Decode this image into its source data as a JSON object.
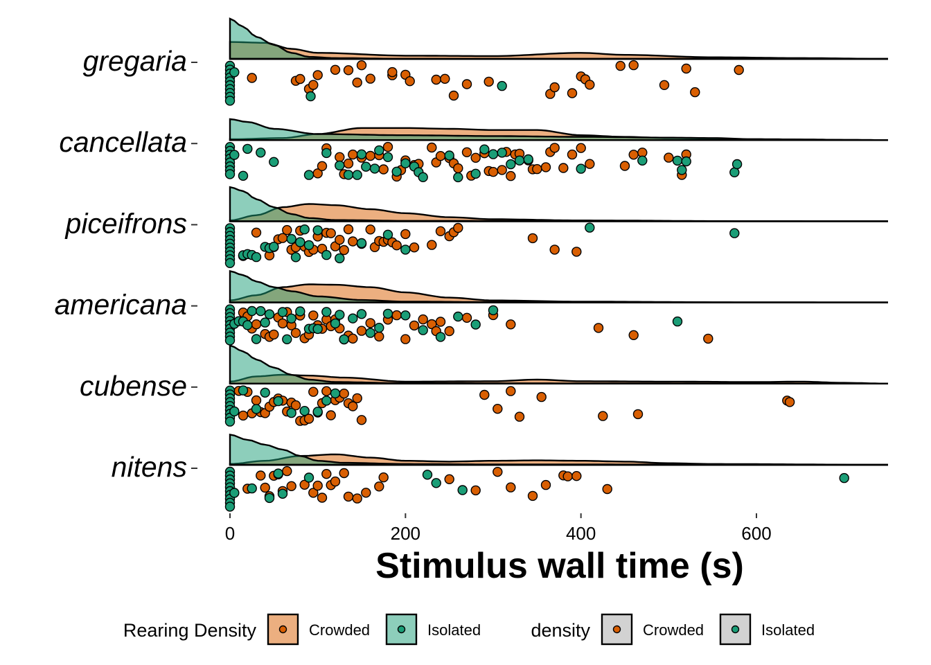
{
  "chart_data": {
    "type": "raincloud",
    "title": "",
    "xlabel": "Stimulus wall time (s)",
    "ylabel": "",
    "xlim": [
      0,
      750
    ],
    "x_ticks": [
      0,
      200,
      400,
      600
    ],
    "x_tick_labels": [
      "0",
      "200",
      "400",
      "600"
    ],
    "categories": [
      "gregaria",
      "cancellata",
      "piceifrons",
      "americana",
      "cubense",
      "nitens"
    ],
    "colors": {
      "Crowded": "#d95f02",
      "Isolated": "#1b9e77"
    },
    "legend": [
      {
        "title": "Rearing Density",
        "entries": [
          {
            "label": "Crowded",
            "fill": "#d95f02",
            "dot": "#d95f02"
          },
          {
            "label": "Isolated",
            "fill": "#1b9e77",
            "dot": "#1b9e77"
          }
        ]
      },
      {
        "title": "density",
        "entries": [
          {
            "label": "Crowded",
            "fill": "#a6a6a6",
            "dot": "#d95f02"
          },
          {
            "label": "Isolated",
            "fill": "#a6a6a6",
            "dot": "#1b9e77"
          }
        ]
      }
    ],
    "legend_position": "bottom",
    "density_peak_height": 58,
    "series": [
      {
        "category": "gregaria",
        "density_points": {
          "Isolated": [
            [
              0,
              1.0
            ],
            [
              15,
              0.8
            ],
            [
              30,
              0.55
            ],
            [
              50,
              0.35
            ],
            [
              70,
              0.15
            ],
            [
              90,
              0.05
            ],
            [
              120,
              0.02
            ],
            [
              200,
              0.0
            ],
            [
              750,
              0.0
            ]
          ],
          "Crowded": [
            [
              0,
              0.42
            ],
            [
              40,
              0.4
            ],
            [
              70,
              0.25
            ],
            [
              100,
              0.15
            ],
            [
              200,
              0.08
            ],
            [
              300,
              0.07
            ],
            [
              400,
              0.15
            ],
            [
              450,
              0.1
            ],
            [
              550,
              0.04
            ],
            [
              650,
              0.02
            ],
            [
              750,
              0.0
            ]
          ]
        },
        "Crowded": [
          25,
          75,
          80,
          90,
          95,
          100,
          120,
          135,
          145,
          150,
          160,
          185,
          185,
          200,
          205,
          235,
          245,
          255,
          270,
          295,
          365,
          370,
          390,
          400,
          405,
          410,
          445,
          460,
          495,
          520,
          530,
          580
        ],
        "Isolated": [
          0,
          0,
          0,
          0,
          0,
          0,
          0,
          0,
          0,
          0,
          5,
          92,
          310
        ]
      },
      {
        "category": "cancellata",
        "density_points": {
          "Isolated": [
            [
              0,
              0.52
            ],
            [
              20,
              0.45
            ],
            [
              50,
              0.28
            ],
            [
              100,
              0.15
            ],
            [
              200,
              0.12
            ],
            [
              300,
              0.1
            ],
            [
              400,
              0.08
            ],
            [
              500,
              0.06
            ],
            [
              550,
              0.05
            ],
            [
              600,
              0.02
            ],
            [
              750,
              0.0
            ]
          ],
          "Crowded": [
            [
              0,
              0.02
            ],
            [
              60,
              0.05
            ],
            [
              100,
              0.15
            ],
            [
              150,
              0.3
            ],
            [
              200,
              0.3
            ],
            [
              250,
              0.28
            ],
            [
              300,
              0.25
            ],
            [
              350,
              0.25
            ],
            [
              400,
              0.12
            ],
            [
              450,
              0.08
            ],
            [
              500,
              0.05
            ],
            [
              600,
              0.02
            ],
            [
              750,
              0.0
            ]
          ]
        },
        "Crowded": [
          100,
          105,
          110,
          125,
          130,
          135,
          140,
          150,
          160,
          170,
          175,
          180,
          190,
          195,
          200,
          210,
          215,
          230,
          235,
          240,
          250,
          255,
          260,
          270,
          275,
          280,
          290,
          295,
          300,
          310,
          315,
          320,
          325,
          330,
          340,
          345,
          350,
          360,
          365,
          370,
          380,
          390,
          400,
          410,
          450,
          460,
          470,
          500,
          515,
          520
        ],
        "Isolated": [
          0,
          0,
          0,
          0,
          0,
          0,
          0,
          0,
          5,
          15,
          20,
          35,
          50,
          90,
          110,
          125,
          135,
          145,
          150,
          155,
          165,
          170,
          180,
          190,
          200,
          210,
          215,
          220,
          250,
          260,
          280,
          290,
          300,
          310,
          320,
          330,
          340,
          400,
          470,
          510,
          515,
          520,
          575,
          578
        ]
      },
      {
        "category": "piceifrons",
        "density_points": {
          "Isolated": [
            [
              0,
              0.85
            ],
            [
              15,
              0.75
            ],
            [
              30,
              0.55
            ],
            [
              50,
              0.35
            ],
            [
              70,
              0.18
            ],
            [
              90,
              0.08
            ],
            [
              120,
              0.03
            ],
            [
              200,
              0.01
            ],
            [
              750,
              0.0
            ]
          ],
          "Crowded": [
            [
              0,
              0.02
            ],
            [
              30,
              0.15
            ],
            [
              60,
              0.35
            ],
            [
              90,
              0.43
            ],
            [
              120,
              0.4
            ],
            [
              160,
              0.3
            ],
            [
              200,
              0.2
            ],
            [
              250,
              0.1
            ],
            [
              300,
              0.05
            ],
            [
              400,
              0.02
            ],
            [
              600,
              0.0
            ],
            [
              750,
              0.0
            ]
          ]
        },
        "Crowded": [
          15,
          30,
          45,
          50,
          55,
          60,
          65,
          70,
          75,
          80,
          85,
          90,
          95,
          100,
          105,
          110,
          115,
          120,
          125,
          130,
          135,
          140,
          150,
          160,
          165,
          170,
          175,
          180,
          185,
          190,
          200,
          210,
          230,
          240,
          250,
          255,
          260,
          345,
          370,
          395
        ],
        "Isolated": [
          0,
          0,
          0,
          0,
          0,
          0,
          0,
          0,
          0,
          0,
          15,
          20,
          25,
          30,
          40,
          45,
          50,
          70,
          75,
          80,
          85,
          90,
          100,
          110,
          125,
          150,
          180,
          200,
          410,
          575
        ]
      },
      {
        "category": "americana",
        "density_points": {
          "Isolated": [
            [
              0,
              0.78
            ],
            [
              15,
              0.68
            ],
            [
              30,
              0.52
            ],
            [
              50,
              0.38
            ],
            [
              70,
              0.28
            ],
            [
              100,
              0.15
            ],
            [
              150,
              0.06
            ],
            [
              200,
              0.02
            ],
            [
              300,
              0.01
            ],
            [
              750,
              0.0
            ]
          ],
          "Crowded": [
            [
              0,
              0.05
            ],
            [
              30,
              0.18
            ],
            [
              60,
              0.38
            ],
            [
              90,
              0.45
            ],
            [
              120,
              0.44
            ],
            [
              160,
              0.38
            ],
            [
              200,
              0.25
            ],
            [
              250,
              0.12
            ],
            [
              300,
              0.05
            ],
            [
              400,
              0.02
            ],
            [
              600,
              0.0
            ],
            [
              750,
              0.0
            ]
          ]
        },
        "Crowded": [
          15,
          20,
          25,
          30,
          40,
          45,
          50,
          55,
          60,
          65,
          70,
          75,
          80,
          85,
          90,
          95,
          100,
          105,
          110,
          115,
          120,
          125,
          130,
          135,
          140,
          150,
          160,
          170,
          180,
          190,
          200,
          210,
          220,
          230,
          235,
          240,
          250,
          270,
          300,
          320,
          420,
          460,
          545
        ],
        "Isolated": [
          0,
          0,
          0,
          0,
          0,
          0,
          0,
          0,
          0,
          5,
          10,
          15,
          20,
          25,
          30,
          35,
          40,
          45,
          60,
          65,
          70,
          80,
          90,
          95,
          100,
          110,
          120,
          125,
          130,
          140,
          150,
          160,
          170,
          180,
          200,
          220,
          240,
          260,
          280,
          300,
          510
        ]
      },
      {
        "category": "cubense",
        "density_points": {
          "Isolated": [
            [
              0,
              0.95
            ],
            [
              15,
              0.8
            ],
            [
              30,
              0.6
            ],
            [
              50,
              0.4
            ],
            [
              70,
              0.22
            ],
            [
              90,
              0.1
            ],
            [
              120,
              0.04
            ],
            [
              200,
              0.01
            ],
            [
              750,
              0.0
            ]
          ],
          "Crowded": [
            [
              0,
              0.05
            ],
            [
              30,
              0.18
            ],
            [
              60,
              0.22
            ],
            [
              90,
              0.2
            ],
            [
              130,
              0.15
            ],
            [
              200,
              0.05
            ],
            [
              300,
              0.06
            ],
            [
              350,
              0.1
            ],
            [
              400,
              0.06
            ],
            [
              500,
              0.05
            ],
            [
              600,
              0.04
            ],
            [
              650,
              0.05
            ],
            [
              700,
              0.02
            ],
            [
              750,
              0.0
            ]
          ]
        },
        "Crowded": [
          10,
          15,
          20,
          25,
          30,
          35,
          40,
          45,
          50,
          55,
          60,
          65,
          70,
          75,
          80,
          85,
          90,
          95,
          100,
          105,
          110,
          115,
          120,
          125,
          130,
          135,
          140,
          145,
          150,
          290,
          305,
          320,
          330,
          355,
          425,
          465,
          635,
          638
        ],
        "Isolated": [
          0,
          0,
          0,
          0,
          0,
          0,
          0,
          0,
          0,
          5,
          15,
          30,
          40,
          55,
          70,
          85,
          100,
          110,
          120
        ]
      },
      {
        "category": "nitens",
        "density_points": {
          "Isolated": [
            [
              0,
              0.75
            ],
            [
              20,
              0.62
            ],
            [
              40,
              0.5
            ],
            [
              60,
              0.38
            ],
            [
              80,
              0.22
            ],
            [
              100,
              0.1
            ],
            [
              130,
              0.05
            ],
            [
              200,
              0.02
            ],
            [
              300,
              0.01
            ],
            [
              750,
              0.0
            ]
          ],
          "Crowded": [
            [
              0,
              0.02
            ],
            [
              40,
              0.1
            ],
            [
              80,
              0.22
            ],
            [
              120,
              0.26
            ],
            [
              160,
              0.18
            ],
            [
              200,
              0.1
            ],
            [
              250,
              0.08
            ],
            [
              300,
              0.1
            ],
            [
              350,
              0.11
            ],
            [
              400,
              0.1
            ],
            [
              450,
              0.08
            ],
            [
              500,
              0.04
            ],
            [
              550,
              0.02
            ],
            [
              750,
              0.0
            ]
          ]
        },
        "Crowded": [
          20,
          35,
          40,
          45,
          50,
          55,
          60,
          65,
          70,
          85,
          95,
          100,
          105,
          110,
          115,
          120,
          130,
          135,
          145,
          155,
          170,
          175,
          250,
          280,
          305,
          320,
          345,
          360,
          380,
          385,
          395,
          430
        ],
        "Isolated": [
          0,
          0,
          0,
          0,
          0,
          0,
          0,
          0,
          0,
          0,
          5,
          25,
          45,
          55,
          60,
          90,
          225,
          235,
          265,
          700
        ]
      }
    ]
  }
}
